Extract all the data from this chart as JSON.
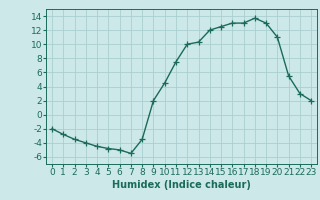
{
  "x": [
    0,
    1,
    2,
    3,
    4,
    5,
    6,
    7,
    8,
    9,
    10,
    11,
    12,
    13,
    14,
    15,
    16,
    17,
    18,
    19,
    20,
    21,
    22,
    23
  ],
  "y": [
    -2,
    -2.8,
    -3.5,
    -4.0,
    -4.5,
    -4.8,
    -5.0,
    -5.5,
    -3.5,
    2.0,
    4.5,
    7.5,
    10.0,
    10.3,
    12.0,
    12.5,
    13.0,
    13.0,
    13.7,
    13.0,
    11.0,
    5.5,
    3.0,
    2.0
  ],
  "line_color": "#1a6b5a",
  "bg_color": "#cce8e8",
  "grid_color": "#aacfcf",
  "xlabel": "Humidex (Indice chaleur)",
  "yticks": [
    -6,
    -4,
    -2,
    0,
    2,
    4,
    6,
    8,
    10,
    12,
    14
  ],
  "xticks": [
    0,
    1,
    2,
    3,
    4,
    5,
    6,
    7,
    8,
    9,
    10,
    11,
    12,
    13,
    14,
    15,
    16,
    17,
    18,
    19,
    20,
    21,
    22,
    23
  ],
  "xlim": [
    -0.5,
    23.5
  ],
  "ylim": [
    -7,
    15
  ],
  "marker": "+",
  "markersize": 4,
  "linewidth": 1.0,
  "xlabel_fontsize": 7,
  "tick_fontsize": 6.5
}
